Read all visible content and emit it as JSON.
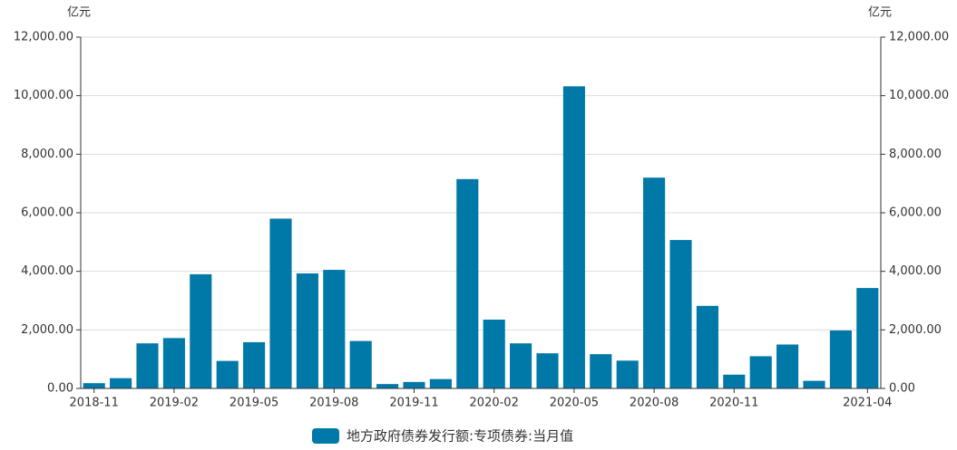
{
  "chart_data": {
    "type": "bar",
    "y_label": "亿元",
    "y2_label": "亿元",
    "categories": [
      "2018-11",
      null,
      null,
      "2019-02",
      null,
      null,
      "2019-05",
      null,
      null,
      "2019-08",
      null,
      null,
      "2019-11",
      null,
      null,
      "2020-02",
      null,
      null,
      "2020-05",
      null,
      null,
      "2020-08",
      null,
      null,
      "2020-11",
      null,
      null,
      null,
      null,
      "2021-04"
    ],
    "series": [
      {
        "name": "地方政府债券发行额:专项债券:当月值",
        "color": "#0078a8",
        "values": [
          180,
          350,
          1540,
          1720,
          3900,
          940,
          1580,
          5800,
          3930,
          4050,
          1620,
          150,
          220,
          320,
          7150,
          2350,
          1540,
          1200,
          10320,
          1170,
          950,
          7200,
          5070,
          2820,
          470,
          1100,
          1500,
          260,
          1980,
          3430
        ]
      }
    ],
    "ylim": [
      0,
      12000
    ],
    "yticks": [
      {
        "value": 0,
        "label": "0.00"
      },
      {
        "value": 2000,
        "label": "2,000.00"
      },
      {
        "value": 4000,
        "label": "4,000.00"
      },
      {
        "value": 6000,
        "label": "6,000.00"
      },
      {
        "value": 8000,
        "label": "8,000.00"
      },
      {
        "value": 10000,
        "label": "10,000.00"
      },
      {
        "value": 12000,
        "label": "12,000.00"
      }
    ],
    "y2lim": [
      0,
      12000
    ],
    "y2ticks": [
      {
        "value": 0,
        "label": "0.00"
      },
      {
        "value": 2000,
        "label": "2,000.00"
      },
      {
        "value": 4000,
        "label": "4,000.00"
      },
      {
        "value": 6000,
        "label": "6,000.00"
      },
      {
        "value": 8000,
        "label": "8,000.00"
      },
      {
        "value": 10000,
        "label": "10,000.00"
      },
      {
        "value": 12000,
        "label": "12,000.00"
      }
    ],
    "grid": true
  }
}
